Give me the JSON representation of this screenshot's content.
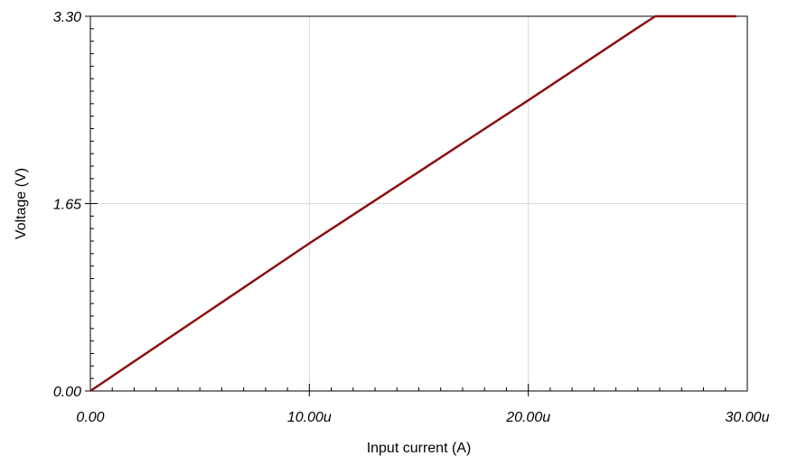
{
  "chart_data": {
    "type": "line",
    "title": "",
    "xlabel": "Input current (A)",
    "ylabel": "Voltage (V)",
    "xlim": [
      0,
      3e-05
    ],
    "ylim": [
      0,
      3.3
    ],
    "xticks": [
      {
        "value": 0,
        "label": "0.00"
      },
      {
        "value": 1e-05,
        "label": "10.00u"
      },
      {
        "value": 2e-05,
        "label": "20.00u"
      },
      {
        "value": 3e-05,
        "label": "30.00u"
      }
    ],
    "yticks": [
      {
        "value": 0,
        "label": "0.00"
      },
      {
        "value": 1.65,
        "label": "1.65"
      },
      {
        "value": 3.3,
        "label": "3.30"
      }
    ],
    "grid": true,
    "series": [
      {
        "color": "#8b1010",
        "x": [
          0,
          5e-06,
          1e-05,
          1.5e-05,
          2e-05,
          2.5e-05,
          2.58e-05,
          2.95e-05
        ],
        "y": [
          0,
          0.65,
          1.3,
          1.93,
          2.56,
          3.2,
          3.3,
          3.3
        ]
      }
    ]
  }
}
